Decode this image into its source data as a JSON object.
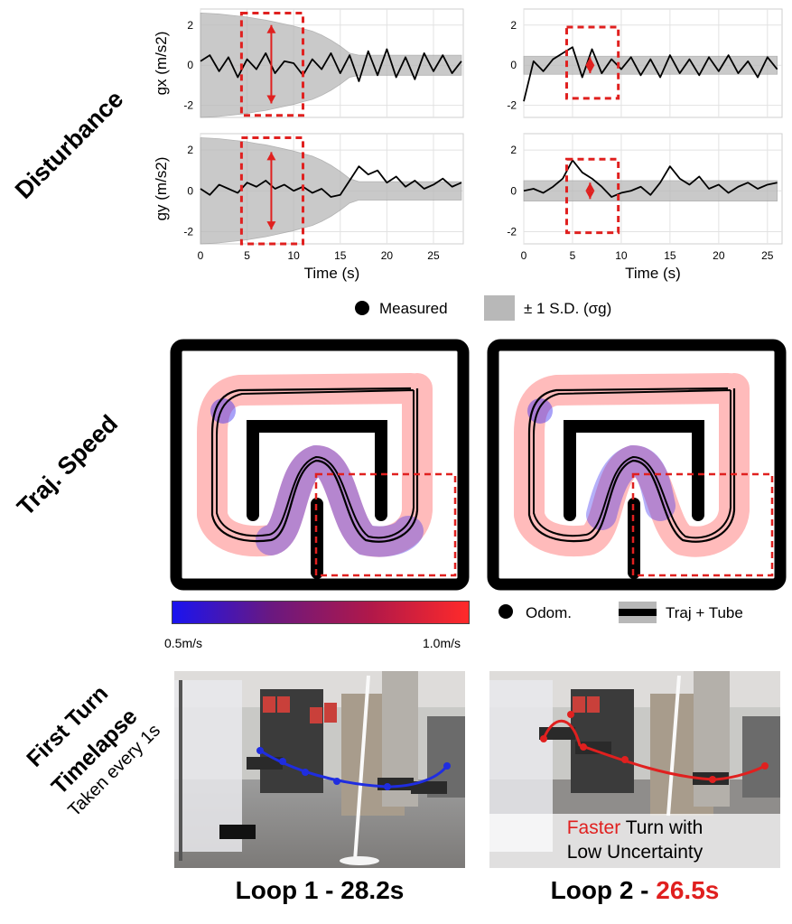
{
  "row_labels": {
    "disturbance": "Disturbance",
    "traj_speed": "Traj. Speed",
    "timelapse_line1": "First Turn",
    "timelapse_line2": "Timelapse",
    "timelapse_sub": "Taken every 1s"
  },
  "chart_data": [
    {
      "type": "line",
      "panel": "loop1-gx",
      "ylabel": "gx (m/s2)",
      "xlim": [
        0,
        28.2
      ],
      "ylim": [
        -2.6,
        2.8
      ],
      "xticks": [
        0,
        5,
        10,
        15,
        20,
        25
      ],
      "yticks": [
        -2,
        0,
        2
      ],
      "series": [
        {
          "name": "Measured",
          "x": [
            0,
            1,
            2,
            3,
            4,
            5,
            6,
            7,
            8,
            9,
            10,
            11,
            12,
            13,
            14,
            15,
            16,
            17,
            18,
            19,
            20,
            21,
            22,
            23,
            24,
            25,
            26,
            27,
            28
          ],
          "values": [
            0.2,
            0.5,
            -0.3,
            0.4,
            -0.6,
            0.3,
            -0.2,
            0.6,
            -0.4,
            0.2,
            0.1,
            -0.5,
            0.3,
            -0.2,
            0.6,
            -0.4,
            0.5,
            -0.8,
            0.7,
            -0.5,
            0.8,
            -0.6,
            0.4,
            -0.7,
            0.6,
            -0.3,
            0.5,
            -0.4,
            0.2
          ]
        }
      ],
      "band_sd": [
        2.6,
        2.58,
        2.55,
        2.5,
        2.45,
        2.4,
        2.32,
        2.25,
        2.15,
        2.05,
        1.95,
        1.82,
        1.7,
        1.5,
        1.25,
        0.95,
        0.6,
        0.5,
        0.5,
        0.5,
        0.5,
        0.5,
        0.5,
        0.5,
        0.5,
        0.5,
        0.5,
        0.5,
        0.5
      ]
    },
    {
      "type": "line",
      "panel": "loop1-gy",
      "ylabel": "gy (m/s2)",
      "xlabel": "Time (s)",
      "xlim": [
        0,
        28.2
      ],
      "ylim": [
        -2.6,
        2.8
      ],
      "xticks": [
        0,
        5,
        10,
        15,
        20,
        25
      ],
      "yticks": [
        -2,
        0,
        2
      ],
      "series": [
        {
          "name": "Measured",
          "x": [
            0,
            1,
            2,
            3,
            4,
            5,
            6,
            7,
            8,
            9,
            10,
            11,
            12,
            13,
            14,
            15,
            16,
            17,
            18,
            19,
            20,
            21,
            22,
            23,
            24,
            25,
            26,
            27,
            28
          ],
          "values": [
            0.1,
            -0.2,
            0.3,
            0.1,
            -0.1,
            0.4,
            0.2,
            0.5,
            0.1,
            0.3,
            0.0,
            0.2,
            -0.1,
            0.1,
            -0.3,
            -0.2,
            0.5,
            1.2,
            0.8,
            1.0,
            0.4,
            0.7,
            0.2,
            0.5,
            0.1,
            0.3,
            0.6,
            0.2,
            0.4
          ]
        }
      ],
      "band_sd": [
        2.6,
        2.58,
        2.55,
        2.5,
        2.45,
        2.4,
        2.32,
        2.25,
        2.15,
        2.05,
        1.95,
        1.82,
        1.7,
        1.5,
        1.25,
        0.95,
        0.6,
        0.45,
        0.45,
        0.45,
        0.45,
        0.45,
        0.45,
        0.45,
        0.45,
        0.45,
        0.45,
        0.45,
        0.45
      ]
    },
    {
      "type": "line",
      "panel": "loop2-gx",
      "xlim": [
        0,
        26.5
      ],
      "ylim": [
        -2.6,
        2.8
      ],
      "xticks": [
        0,
        5,
        10,
        15,
        20,
        25
      ],
      "yticks": [
        -2,
        0,
        2
      ],
      "series": [
        {
          "name": "Measured",
          "x": [
            0,
            1,
            2,
            3,
            4,
            5,
            6,
            7,
            8,
            9,
            10,
            11,
            12,
            13,
            14,
            15,
            16,
            17,
            18,
            19,
            20,
            21,
            22,
            23,
            24,
            25,
            26
          ],
          "values": [
            -1.8,
            0.2,
            -0.3,
            0.3,
            0.6,
            0.9,
            -0.6,
            0.8,
            -0.4,
            0.3,
            -0.2,
            0.4,
            -0.5,
            0.3,
            -0.6,
            0.5,
            -0.4,
            0.3,
            -0.5,
            0.4,
            -0.3,
            0.5,
            -0.4,
            0.2,
            -0.6,
            0.4,
            -0.2
          ]
        }
      ],
      "band_sd": [
        0.45,
        0.45,
        0.45,
        0.45,
        0.45,
        0.45,
        0.45,
        0.45,
        0.45,
        0.45,
        0.45,
        0.45,
        0.45,
        0.45,
        0.45,
        0.45,
        0.45,
        0.45,
        0.45,
        0.45,
        0.45,
        0.45,
        0.45,
        0.45,
        0.45,
        0.45,
        0.45
      ]
    },
    {
      "type": "line",
      "panel": "loop2-gy",
      "xlabel": "Time (s)",
      "xlim": [
        0,
        26.5
      ],
      "ylim": [
        -2.6,
        2.8
      ],
      "xticks": [
        0,
        5,
        10,
        15,
        20,
        25
      ],
      "yticks": [
        -2,
        0,
        2
      ],
      "series": [
        {
          "name": "Measured",
          "x": [
            0,
            1,
            2,
            3,
            4,
            5,
            6,
            7,
            8,
            9,
            10,
            11,
            12,
            13,
            14,
            15,
            16,
            17,
            18,
            19,
            20,
            21,
            22,
            23,
            24,
            25,
            26
          ],
          "values": [
            0.0,
            0.1,
            -0.1,
            0.2,
            0.6,
            1.5,
            0.9,
            0.6,
            0.2,
            -0.3,
            -0.1,
            0.0,
            0.2,
            -0.2,
            0.4,
            1.2,
            0.6,
            0.3,
            0.7,
            0.1,
            0.3,
            -0.1,
            0.2,
            0.4,
            0.1,
            0.3,
            0.4
          ]
        }
      ],
      "band_sd": [
        0.5,
        0.5,
        0.5,
        0.5,
        0.5,
        0.5,
        0.5,
        0.5,
        0.5,
        0.5,
        0.5,
        0.5,
        0.5,
        0.5,
        0.5,
        0.5,
        0.5,
        0.5,
        0.5,
        0.5,
        0.5,
        0.5,
        0.5,
        0.5,
        0.5,
        0.5,
        0.5
      ]
    }
  ],
  "disturbance_legend": {
    "measured": "Measured",
    "band": "± 1 S.D. (σg)"
  },
  "speed_legend": {
    "min_label": "0.5m/s",
    "max_label": "1.0m/s",
    "odom": "Odom.",
    "traj_tube": "Traj + Tube",
    "color_low": "#1a14f0",
    "color_high": "#ff2a2a"
  },
  "timelapse": {
    "overlay_red_word": "Faster",
    "overlay_rest_line1": " Turn with",
    "overlay_line2": "Low Uncertainty"
  },
  "captions": {
    "loop1": "Loop 1 - 28.2s",
    "loop2_prefix": "Loop 2 - ",
    "loop2_time": "26.5s"
  },
  "colors": {
    "highlight": "#e0201f",
    "band": "#b8b8b8",
    "wall": "#000000"
  }
}
